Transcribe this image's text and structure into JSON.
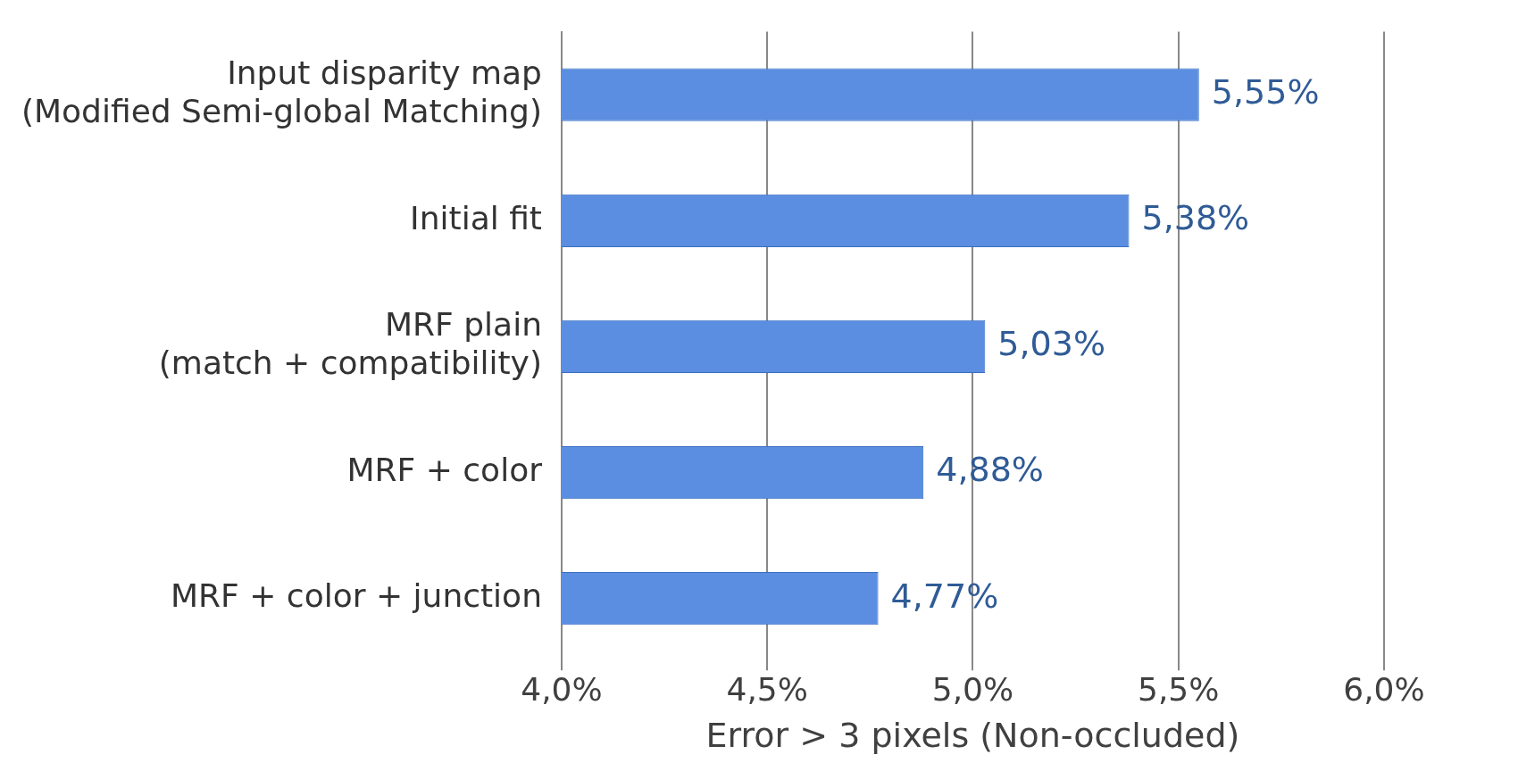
{
  "chart_data": {
    "type": "bar",
    "orientation": "horizontal",
    "categories": [
      "Input disparity map\n(Modified Semi-global Matching)",
      "Initial fit",
      "MRF plain\n(match + compatibility)",
      "MRF + color",
      "MRF + color + junction"
    ],
    "values": [
      5.55,
      5.38,
      5.03,
      4.88,
      4.77
    ],
    "color": "#5b8ee0",
    "value_labels": [
      "5,55%",
      "5,38%",
      "5,03%",
      "4,88%",
      "4,77%"
    ],
    "xlim": [
      4.0,
      6.0
    ],
    "xticks": [
      {
        "value": 4.0,
        "label": "4,0%"
      },
      {
        "value": 4.5,
        "label": "4,5%"
      },
      {
        "value": 5.0,
        "label": "5,0%"
      },
      {
        "value": 5.5,
        "label": "5,5%"
      },
      {
        "value": 6.0,
        "label": "6,0%"
      }
    ],
    "xlabel": "Error > 3 pixels (Non-occluded)",
    "grid": "x",
    "legend": false
  }
}
